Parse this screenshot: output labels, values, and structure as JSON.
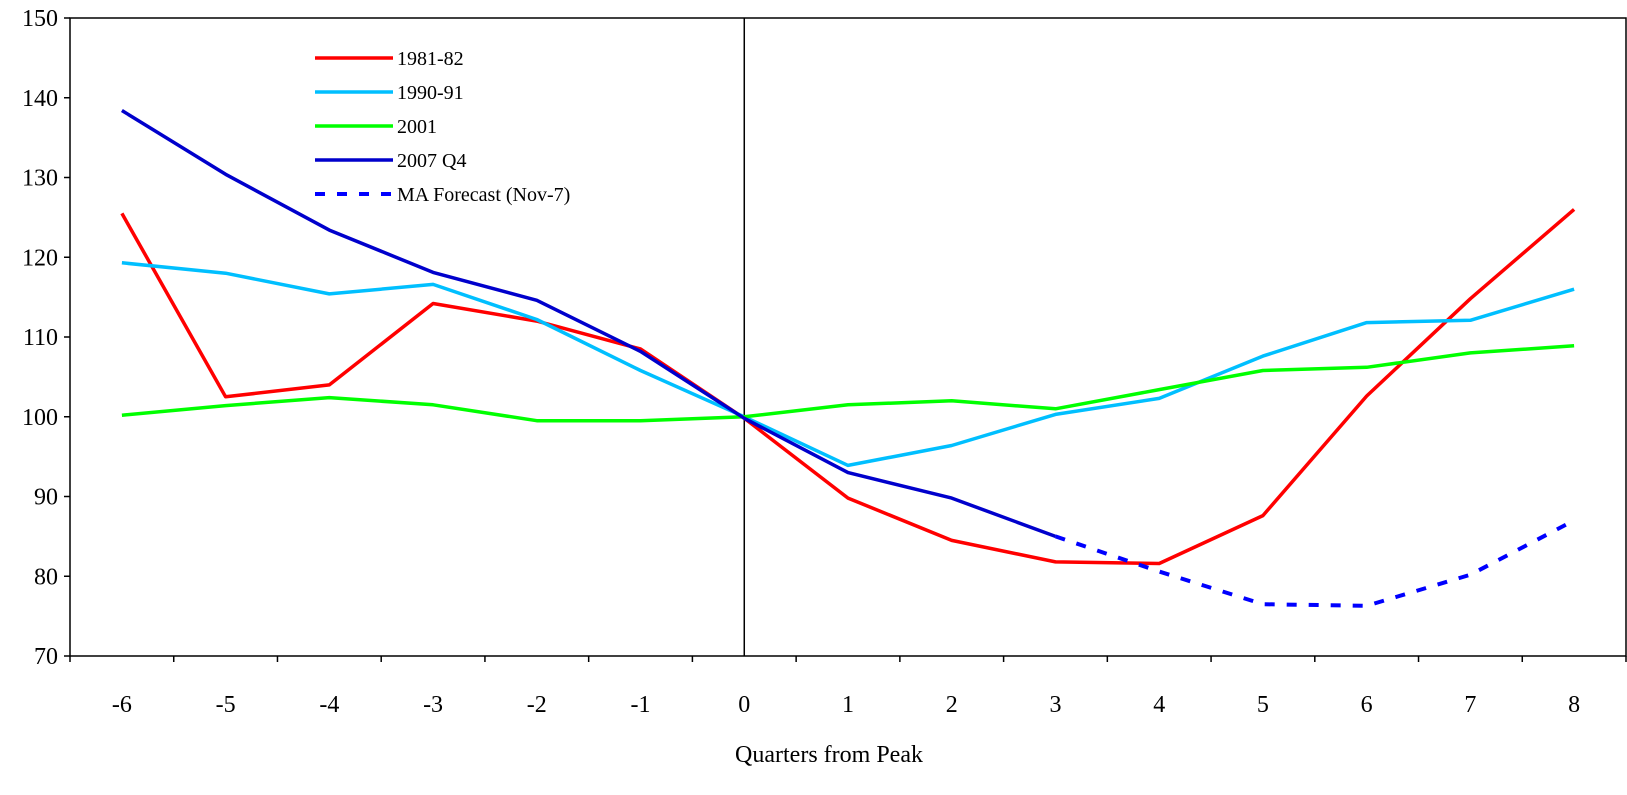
{
  "chart_data": {
    "type": "line",
    "title": "",
    "xlabel": "Quarters from Peak",
    "ylabel": "",
    "x": [
      -6,
      -5,
      -4,
      -3,
      -2,
      -1,
      0,
      1,
      2,
      3,
      4,
      5,
      6,
      7,
      8
    ],
    "xlim": [
      -6.5,
      8.5
    ],
    "ylim": [
      70,
      150
    ],
    "yticks": [
      70,
      80,
      90,
      100,
      110,
      120,
      130,
      140,
      150
    ],
    "xtick_labels": [
      "-6",
      "-5",
      "-4",
      "-3",
      "-2",
      "-1",
      "0",
      "1",
      "2",
      "3",
      "4",
      "5",
      "6",
      "7",
      "8"
    ],
    "ytick_labels": [
      "70",
      "80",
      "90",
      "100",
      "110",
      "120",
      "130",
      "140",
      "150"
    ],
    "grid": false,
    "legend_position": "top-left",
    "reference_line_x": 0,
    "series": [
      {
        "name": "1981-82",
        "color": "#ff0000",
        "style": "solid",
        "x": [
          -6,
          -5,
          -4,
          -3,
          -2,
          -1,
          0,
          1,
          2,
          3,
          4,
          5,
          6,
          7,
          8
        ],
        "values": [
          125.5,
          102.5,
          104.0,
          114.2,
          112.0,
          108.5,
          99.8,
          89.8,
          84.5,
          81.8,
          81.6,
          87.6,
          102.6,
          114.8,
          126.0
        ]
      },
      {
        "name": "1990-91",
        "color": "#00bfff",
        "style": "solid",
        "x": [
          -6,
          -5,
          -4,
          -3,
          -2,
          -1,
          0,
          1,
          2,
          3,
          4,
          5,
          6,
          7,
          8
        ],
        "values": [
          119.3,
          118.0,
          115.4,
          116.6,
          112.2,
          105.8,
          100.0,
          93.9,
          96.4,
          100.3,
          102.3,
          107.6,
          111.8,
          112.1,
          116.0
        ]
      },
      {
        "name": "2001",
        "color": "#00ff00",
        "style": "solid",
        "x": [
          -6,
          -5,
          -4,
          -3,
          -2,
          -1,
          0,
          1,
          2,
          3,
          4,
          5,
          6,
          7,
          8
        ],
        "values": [
          100.2,
          101.4,
          102.4,
          101.5,
          99.5,
          99.5,
          100.0,
          101.5,
          102.0,
          101.0,
          103.4,
          105.8,
          106.2,
          108.0,
          108.9
        ]
      },
      {
        "name": "2007 Q4",
        "color": "#0000cc",
        "style": "solid",
        "x": [
          -6,
          -5,
          -4,
          -3,
          -2,
          -1,
          0,
          1,
          2,
          3
        ],
        "values": [
          138.4,
          130.4,
          123.4,
          118.1,
          114.6,
          108.2,
          99.8,
          93.0,
          89.8,
          85.0
        ]
      },
      {
        "name": "MA Forecast (Nov-7)",
        "color": "#0000ff",
        "style": "dashed",
        "x": [
          3,
          4,
          5,
          6,
          7,
          8
        ],
        "values": [
          85.0,
          80.6,
          76.5,
          76.3,
          80.2,
          87.0
        ]
      }
    ]
  }
}
